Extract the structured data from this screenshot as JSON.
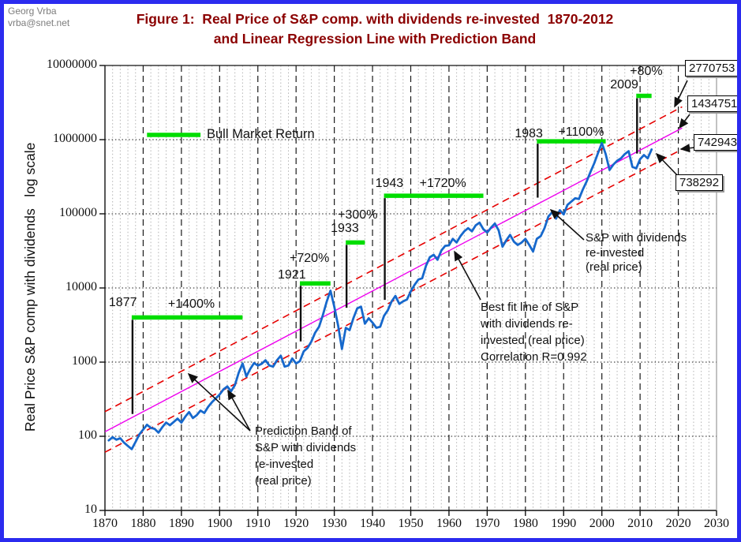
{
  "header": {
    "credit_line1": "Georg Vrba",
    "credit_line2": "vrba@snet.net",
    "title_line1": "Figure 1:  Real Price of S&P comp. with dividends re-invested  1870-2012",
    "title_line2": "and Linear Regression Line with Prediction Band"
  },
  "chart_data": {
    "type": "line",
    "title": "Figure 1: Real Price of S&P comp. with dividends re-invested 1870-2012 and Linear Regression Line with Prediction Band",
    "y_axis_title": "Real Price S&P comp with dividends   log scale",
    "x_axis": {
      "label": "",
      "range": [
        1870,
        2030
      ],
      "ticks": [
        1870,
        1880,
        1890,
        1900,
        1910,
        1920,
        1930,
        1940,
        1950,
        1960,
        1970,
        1980,
        1990,
        2000,
        2010,
        2020,
        2030
      ]
    },
    "y_axis": {
      "label": "Real Price S&P comp with dividends",
      "scale": "log",
      "range": [
        10,
        10000000
      ],
      "ticks": [
        10000000,
        1000000,
        100000,
        10000,
        1000,
        100,
        10
      ]
    },
    "grid": {
      "vertical_minor_step_years": 2,
      "vertical_major_step_years": 10,
      "horizontal_at_decades": true
    },
    "series": [
      {
        "name": "S&P with dividends re-invested (real price)",
        "points": [
          [
            1871,
            88
          ],
          [
            1872,
            97
          ],
          [
            1873,
            90
          ],
          [
            1874,
            94
          ],
          [
            1875,
            82
          ],
          [
            1876,
            74
          ],
          [
            1877,
            67
          ],
          [
            1878,
            84
          ],
          [
            1879,
            106
          ],
          [
            1880,
            123
          ],
          [
            1881,
            143
          ],
          [
            1882,
            130
          ],
          [
            1883,
            126
          ],
          [
            1884,
            112
          ],
          [
            1885,
            133
          ],
          [
            1886,
            153
          ],
          [
            1887,
            141
          ],
          [
            1888,
            156
          ],
          [
            1889,
            173
          ],
          [
            1890,
            153
          ],
          [
            1891,
            183
          ],
          [
            1892,
            212
          ],
          [
            1893,
            176
          ],
          [
            1894,
            193
          ],
          [
            1895,
            222
          ],
          [
            1896,
            206
          ],
          [
            1897,
            250
          ],
          [
            1898,
            288
          ],
          [
            1899,
            325
          ],
          [
            1900,
            365
          ],
          [
            1901,
            430
          ],
          [
            1902,
            470
          ],
          [
            1903,
            405
          ],
          [
            1904,
            490
          ],
          [
            1905,
            720
          ],
          [
            1906,
            960
          ],
          [
            1907,
            640
          ],
          [
            1908,
            810
          ],
          [
            1909,
            970
          ],
          [
            1910,
            900
          ],
          [
            1911,
            950
          ],
          [
            1912,
            1060
          ],
          [
            1913,
            900
          ],
          [
            1914,
            870
          ],
          [
            1915,
            1060
          ],
          [
            1916,
            1220
          ],
          [
            1917,
            870
          ],
          [
            1918,
            900
          ],
          [
            1919,
            1120
          ],
          [
            1920,
            960
          ],
          [
            1921,
            1030
          ],
          [
            1922,
            1400
          ],
          [
            1923,
            1550
          ],
          [
            1924,
            1900
          ],
          [
            1925,
            2500
          ],
          [
            1926,
            3000
          ],
          [
            1927,
            4300
          ],
          [
            1928,
            6500
          ],
          [
            1929,
            9200
          ],
          [
            1930,
            5600
          ],
          [
            1931,
            3100
          ],
          [
            1932,
            1500
          ],
          [
            1933,
            2900
          ],
          [
            1934,
            2700
          ],
          [
            1935,
            3900
          ],
          [
            1936,
            5300
          ],
          [
            1937,
            5600
          ],
          [
            1938,
            3300
          ],
          [
            1939,
            3900
          ],
          [
            1940,
            3400
          ],
          [
            1941,
            2900
          ],
          [
            1942,
            3000
          ],
          [
            1943,
            4200
          ],
          [
            1944,
            5000
          ],
          [
            1945,
            6600
          ],
          [
            1946,
            7800
          ],
          [
            1947,
            6100
          ],
          [
            1948,
            6600
          ],
          [
            1949,
            7000
          ],
          [
            1950,
            9000
          ],
          [
            1951,
            11000
          ],
          [
            1952,
            13000
          ],
          [
            1953,
            13500
          ],
          [
            1954,
            20000
          ],
          [
            1955,
            26000
          ],
          [
            1956,
            28000
          ],
          [
            1957,
            24000
          ],
          [
            1958,
            32000
          ],
          [
            1959,
            37000
          ],
          [
            1960,
            37500
          ],
          [
            1961,
            46000
          ],
          [
            1962,
            41000
          ],
          [
            1963,
            50000
          ],
          [
            1964,
            58000
          ],
          [
            1965,
            64000
          ],
          [
            1966,
            58000
          ],
          [
            1967,
            70000
          ],
          [
            1968,
            76000
          ],
          [
            1969,
            62000
          ],
          [
            1970,
            56000
          ],
          [
            1971,
            65000
          ],
          [
            1972,
            74000
          ],
          [
            1973,
            60000
          ],
          [
            1974,
            36000
          ],
          [
            1975,
            44000
          ],
          [
            1976,
            52000
          ],
          [
            1977,
            42000
          ],
          [
            1978,
            38000
          ],
          [
            1979,
            41000
          ],
          [
            1980,
            46000
          ],
          [
            1981,
            38000
          ],
          [
            1982,
            31000
          ],
          [
            1983,
            46000
          ],
          [
            1984,
            50000
          ],
          [
            1985,
            64000
          ],
          [
            1986,
            92000
          ],
          [
            1987,
            105000
          ],
          [
            1988,
            86000
          ],
          [
            1989,
            112000
          ],
          [
            1990,
            98000
          ],
          [
            1991,
            132000
          ],
          [
            1992,
            146000
          ],
          [
            1993,
            162000
          ],
          [
            1994,
            158000
          ],
          [
            1995,
            212000
          ],
          [
            1996,
            272000
          ],
          [
            1997,
            365000
          ],
          [
            1998,
            480000
          ],
          [
            1999,
            660000
          ],
          [
            2000,
            900000
          ],
          [
            2001,
            640000
          ],
          [
            2002,
            390000
          ],
          [
            2003,
            460000
          ],
          [
            2004,
            520000
          ],
          [
            2005,
            560000
          ],
          [
            2006,
            640000
          ],
          [
            2007,
            700000
          ],
          [
            2008,
            430000
          ],
          [
            2009,
            410000
          ],
          [
            2010,
            545000
          ],
          [
            2011,
            620000
          ],
          [
            2012,
            560000
          ],
          [
            2013,
            738292
          ]
        ]
      }
    ],
    "regression": {
      "name": "Best fit line",
      "start_year": 1870,
      "start_value": 115,
      "end_year": 2021,
      "end_value": 1434751,
      "correlation": "R=0.992"
    },
    "prediction_band": {
      "upper": {
        "start_year": 1870,
        "start_value": 215,
        "end_year": 2021,
        "end_value": 2770753
      },
      "lower": {
        "start_year": 1870,
        "start_value": 61,
        "end_year": 2021,
        "end_value": 742943
      }
    },
    "bull_markets": [
      {
        "trough_year": 1877,
        "peak_year": 1906,
        "gain_label": "+1400%",
        "bar_level": 4000,
        "pointer_bottom_value": 200
      },
      {
        "trough_year": 1921,
        "peak_year": 1929,
        "gain_label": "+720%",
        "bar_level": 11500,
        "pointer_bottom_value": 1900
      },
      {
        "trough_year": 1933,
        "peak_year": 1938,
        "gain_label": "+300%",
        "bar_level": 41000,
        "pointer_bottom_value": 5400
      },
      {
        "trough_year": 1943,
        "peak_year": 1969,
        "gain_label": "+1720%",
        "bar_level": 175000,
        "pointer_bottom_value": 6900
      },
      {
        "trough_year": 1983,
        "peak_year": 2001,
        "gain_label": "+1100%",
        "bar_level": 950000,
        "pointer_bottom_value": 165000
      },
      {
        "trough_year": 2009,
        "peak_year": 2013,
        "gain_label": "+80%",
        "bar_level": 3900000,
        "pointer_bottom_value": 650000
      }
    ],
    "legend": {
      "label": "Bull Market Return",
      "sample_start_year": 1881,
      "sample_end_year": 1895,
      "sample_level": 1160000
    },
    "end_value_labels": [
      "2770753",
      "1434751",
      "742943",
      "738292"
    ],
    "callouts": {
      "sp_series": "S&P with dividends\nre-invested\n(real price)",
      "best_fit": "Best fit line of S&P\nwith dividends re-\ninvested (real price)\nCorrelation R=0.992",
      "prediction_band": "Prediction Band of\nS&P with dividends\nre-invested\n(real price)"
    },
    "colors": {
      "series": "#1668cc",
      "regression": "#ee00ee",
      "band": "#e60000",
      "bull": "#00dd00",
      "frame": "#2b2bef",
      "title": "#8b0000",
      "credit": "#7d7d7d",
      "grid_minor": "#b3b3b3",
      "grid_major": "#1a1a1a",
      "axis_right_border": "#9a9a9a"
    }
  }
}
